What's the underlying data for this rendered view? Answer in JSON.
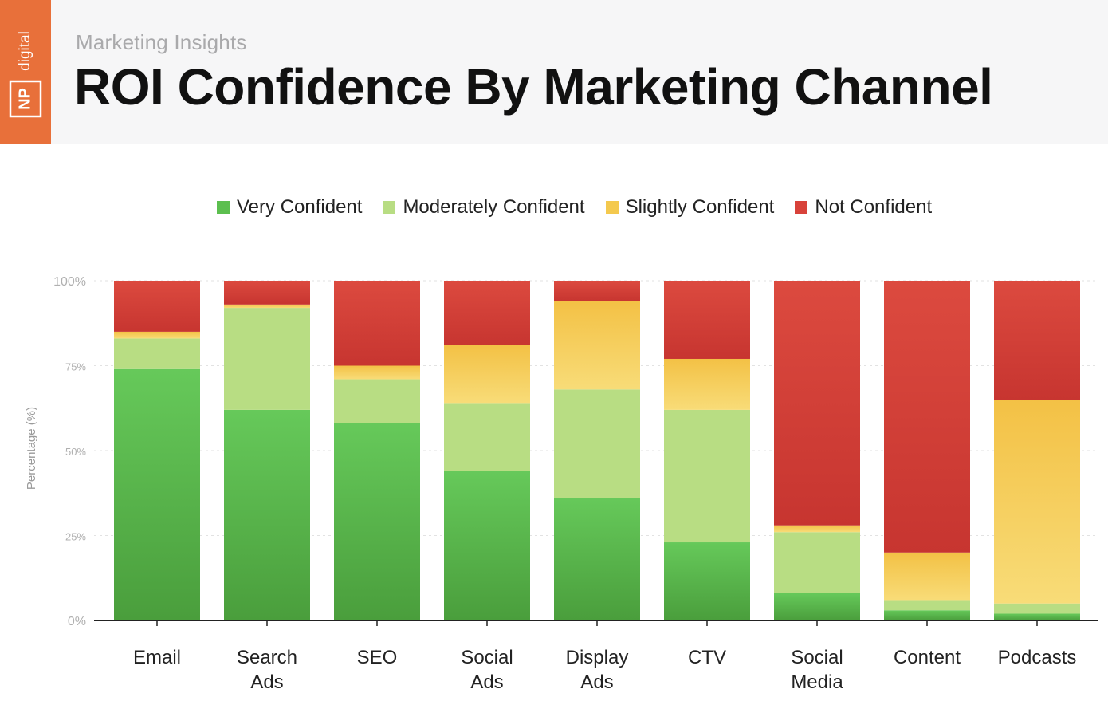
{
  "header": {
    "brand_text": "NP digital",
    "subtitle": "Marketing Insights",
    "title": "ROI Confidence By Marketing Channel"
  },
  "colors": {
    "header_bg": "#f6f6f7",
    "brand": "#e8703a",
    "very_confident": "#5cbf4f",
    "moderately_confident": "#b8dd83",
    "slightly_confident": "#f4c94e",
    "not_confident": "#d8423a"
  },
  "chart_data": {
    "type": "bar",
    "stacked": true,
    "title": "ROI Confidence By Marketing Channel",
    "xlabel": "",
    "ylabel": "Percentage (%)",
    "ylim": [
      0,
      100
    ],
    "yticks": [
      0,
      25,
      50,
      75,
      100
    ],
    "ytick_labels": [
      "0%",
      "25%",
      "50%",
      "75%",
      "100%"
    ],
    "legend_position": "top-center",
    "categories": [
      "Email",
      "Search Ads",
      "SEO",
      "Social Ads",
      "Display Ads",
      "CTV",
      "Social Media",
      "Content",
      "Podcasts"
    ],
    "category_lines": [
      [
        "Email"
      ],
      [
        "Search",
        "Ads"
      ],
      [
        "SEO"
      ],
      [
        "Social",
        "Ads"
      ],
      [
        "Display",
        "Ads"
      ],
      [
        "CTV"
      ],
      [
        "Social",
        "Media"
      ],
      [
        "Content"
      ],
      [
        "Podcasts"
      ]
    ],
    "series": [
      {
        "name": "Very Confident",
        "key": "very_confident",
        "values": [
          74,
          62,
          58,
          44,
          36,
          23,
          8,
          3,
          2
        ]
      },
      {
        "name": "Moderately Confident",
        "key": "moderately_confident",
        "values": [
          9,
          30,
          13,
          20,
          32,
          39,
          18,
          3,
          3
        ]
      },
      {
        "name": "Slightly Confident",
        "key": "slightly_confident",
        "values": [
          2,
          1,
          4,
          17,
          26,
          15,
          2,
          14,
          60
        ]
      },
      {
        "name": "Not Confident",
        "key": "not_confident",
        "values": [
          15,
          7,
          25,
          19,
          6,
          23,
          72,
          80,
          35
        ]
      }
    ]
  }
}
